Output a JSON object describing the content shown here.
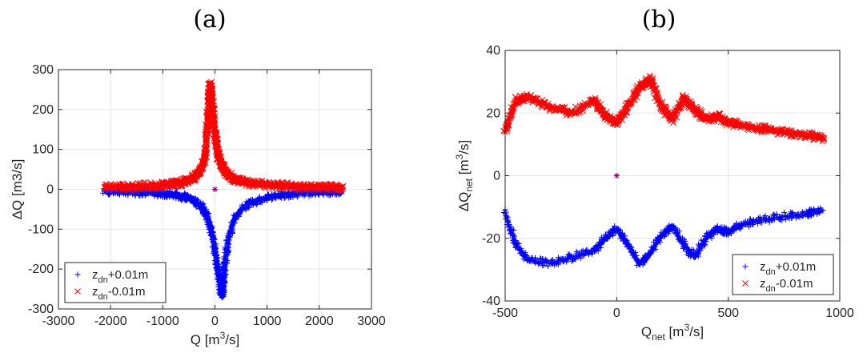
{
  "figure": {
    "panels": [
      {
        "label": "(a)"
      },
      {
        "label": "(b)"
      }
    ]
  },
  "chart_data": [
    {
      "type": "scatter",
      "title": "(a)",
      "xlabel": {
        "main": "Q [m",
        "sup": "3",
        "rest": "/s]"
      },
      "ylabel": "ΔQ [m3/s]",
      "xlim": [
        -3000,
        3000
      ],
      "ylim": [
        -300,
        300
      ],
      "xticks": [
        -3000,
        -2000,
        -1000,
        0,
        1000,
        2000,
        3000
      ],
      "yticks": [
        -300,
        -200,
        -100,
        0,
        100,
        200,
        300
      ],
      "grid": true,
      "legend_position": "bottom-left",
      "series": [
        {
          "name": "zdn+0.01m",
          "legend": {
            "main": "z",
            "sub": "dn",
            "rest": "+0.01m"
          },
          "marker": "+",
          "color": "#0000ff",
          "x": [
            -2120,
            -1800,
            -1500,
            -1200,
            -1000,
            -800,
            -600,
            -450,
            -350,
            -250,
            -180,
            -120,
            -60,
            0,
            40,
            80,
            110,
            130,
            150,
            170,
            200,
            250,
            350,
            500,
            700,
            1000,
            1300,
            1600,
            1900,
            2200,
            2450
          ],
          "y": [
            -5,
            -6,
            -7,
            -9,
            -11,
            -14,
            -18,
            -25,
            -32,
            -45,
            -60,
            -80,
            -110,
            -150,
            -190,
            -220,
            -250,
            -265,
            -250,
            -220,
            -180,
            -130,
            -80,
            -50,
            -32,
            -20,
            -14,
            -10,
            -7,
            -6,
            -5
          ]
        },
        {
          "name": "zdn-0.01m",
          "legend": {
            "main": "z",
            "sub": "dn",
            "rest": "-0.01m"
          },
          "marker": "x",
          "color": "#ff0000",
          "x": [
            -2120,
            -1800,
            -1500,
            -1200,
            -1000,
            -800,
            -600,
            -450,
            -350,
            -250,
            -180,
            -150,
            -120,
            -90,
            -60,
            -20,
            20,
            60,
            100,
            150,
            220,
            350,
            500,
            700,
            1000,
            1300,
            1600,
            1900,
            2200,
            2450
          ],
          "y": [
            5,
            6,
            7,
            9,
            11,
            14,
            18,
            26,
            35,
            55,
            90,
            150,
            220,
            265,
            230,
            170,
            120,
            90,
            70,
            55,
            40,
            28,
            20,
            15,
            11,
            9,
            7,
            6,
            5,
            5
          ]
        },
        {
          "name": "origin",
          "marker": "*",
          "color": "#8b008b",
          "x": [
            0
          ],
          "y": [
            0
          ]
        }
      ]
    },
    {
      "type": "scatter",
      "title": "(b)",
      "xlabel": {
        "main": "Q",
        "sub": "net",
        "rest": " [m",
        "sup": "3",
        "rest2": "/s]"
      },
      "ylabel": {
        "main": "ΔQ",
        "sub": "net",
        "rest": " [m",
        "sup": "3",
        "rest2": "/s]"
      },
      "xlim": [
        -500,
        1000
      ],
      "ylim": [
        -40,
        40
      ],
      "xticks": [
        -500,
        0,
        500,
        1000
      ],
      "yticks": [
        -40,
        -20,
        0,
        20,
        40
      ],
      "grid": true,
      "legend_position": "bottom-right",
      "series": [
        {
          "name": "zdn+0.01m",
          "legend": {
            "main": "z",
            "sub": "dn",
            "rest": "+0.01m"
          },
          "marker": "+",
          "color": "#0000ff",
          "x": [
            -500,
            -450,
            -400,
            -300,
            -200,
            -100,
            -50,
            0,
            50,
            100,
            150,
            200,
            250,
            300,
            350,
            400,
            450,
            500,
            550,
            650,
            750,
            850,
            920
          ],
          "y": [
            -12,
            -22,
            -27,
            -28,
            -26,
            -24,
            -20,
            -17,
            -22,
            -28,
            -25,
            -19,
            -16,
            -22,
            -26,
            -20,
            -17,
            -18,
            -16,
            -14,
            -13,
            -12,
            -11
          ]
        },
        {
          "name": "zdn-0.01m",
          "legend": {
            "main": "z",
            "sub": "dn",
            "rest": "-0.01m"
          },
          "marker": "x",
          "color": "#ff0000",
          "x": [
            -500,
            -450,
            -400,
            -300,
            -200,
            -100,
            -50,
            0,
            50,
            100,
            150,
            200,
            250,
            300,
            350,
            400,
            450,
            500,
            550,
            650,
            750,
            850,
            930
          ],
          "y": [
            14,
            24,
            25,
            22,
            20,
            24,
            19,
            17,
            22,
            28,
            31,
            22,
            18,
            25,
            21,
            18,
            19,
            17,
            16,
            15,
            14,
            13,
            12
          ]
        },
        {
          "name": "origin",
          "marker": "*",
          "color": "#8b008b",
          "x": [
            0
          ],
          "y": [
            0
          ]
        }
      ]
    }
  ]
}
